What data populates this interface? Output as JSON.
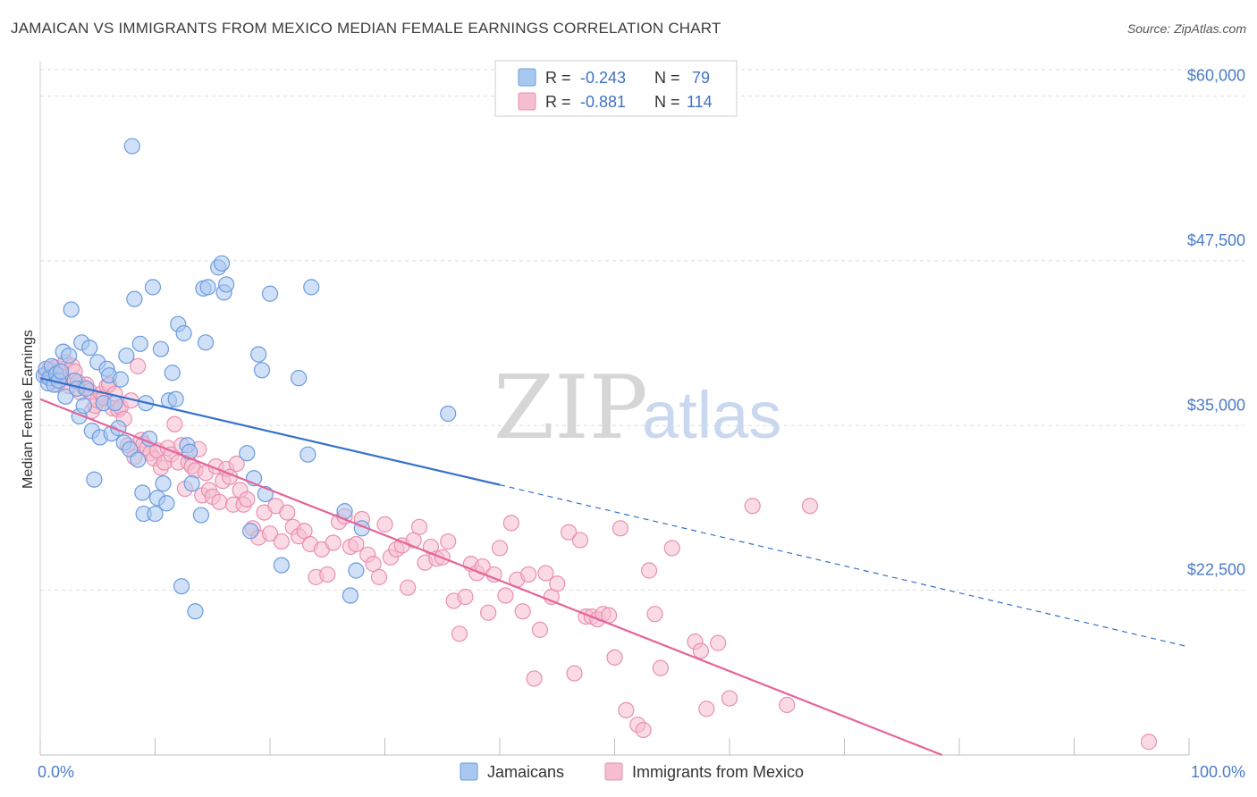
{
  "title": "JAMAICAN VS IMMIGRANTS FROM MEXICO MEDIAN FEMALE EARNINGS CORRELATION CHART",
  "source": "Source: ZipAtlas.com",
  "watermark": {
    "zip": "ZIP",
    "atlas": "atlas"
  },
  "colors": {
    "blue_fill": "#a9c8f0",
    "blue_stroke": "#6b9be0",
    "blue_line": "#3671c9",
    "pink_fill": "#f6bdd0",
    "pink_stroke": "#ea8fb0",
    "pink_line": "#e4649a",
    "grid": "#dcdcdc",
    "tick_text": "#4a7cc9"
  },
  "legend": {
    "rows": [
      {
        "r_label": "R =",
        "r_value": "-0.243",
        "n_label": "N =",
        "n_value": "79"
      },
      {
        "r_label": "R =",
        "r_value": "-0.881",
        "n_label": "N =",
        "n_value": "114"
      }
    ]
  },
  "chart_data": {
    "type": "scatter",
    "title": "JAMAICAN VS IMMIGRANTS FROM MEXICO MEDIAN FEMALE EARNINGS CORRELATION CHART",
    "xlabel": "",
    "ylabel": "Median Female Earnings",
    "xlim": [
      0,
      100
    ],
    "ylim": [
      10000,
      62000
    ],
    "y_ticks": [
      {
        "value": 22500,
        "label": "$22,500"
      },
      {
        "value": 35000,
        "label": "$35,000"
      },
      {
        "value": 47500,
        "label": "$47,500"
      },
      {
        "value": 60000,
        "label": "$60,000"
      }
    ],
    "x_tick_labels": [
      {
        "value": 0,
        "label": "0.0%"
      },
      {
        "value": 100,
        "label": "100.0%"
      }
    ],
    "x_minor_ticks": [
      0,
      10,
      20,
      30,
      40,
      50,
      60,
      70,
      80,
      90,
      100
    ],
    "series": [
      {
        "name": "Jamaicans",
        "color": "blue",
        "trend": {
          "x0": 0,
          "y0": 38600,
          "x1": 40,
          "y1": 30500,
          "dash_x1": 100,
          "dash_y1": 18200
        },
        "points": [
          [
            0.3,
            38800
          ],
          [
            0.5,
            39300
          ],
          [
            0.7,
            38200
          ],
          [
            0.8,
            38600
          ],
          [
            1.0,
            39500
          ],
          [
            1.2,
            38100
          ],
          [
            1.4,
            38900
          ],
          [
            1.6,
            38400
          ],
          [
            1.8,
            39100
          ],
          [
            2.0,
            40600
          ],
          [
            2.2,
            37200
          ],
          [
            2.5,
            40300
          ],
          [
            2.7,
            43800
          ],
          [
            3.0,
            38400
          ],
          [
            3.2,
            37800
          ],
          [
            3.4,
            35700
          ],
          [
            3.6,
            41300
          ],
          [
            3.8,
            36500
          ],
          [
            4.0,
            37800
          ],
          [
            4.3,
            40900
          ],
          [
            4.5,
            34600
          ],
          [
            4.7,
            30900
          ],
          [
            5.0,
            39800
          ],
          [
            5.2,
            34100
          ],
          [
            5.5,
            36700
          ],
          [
            5.8,
            39300
          ],
          [
            6.0,
            38800
          ],
          [
            6.2,
            34400
          ],
          [
            6.5,
            36700
          ],
          [
            6.8,
            34800
          ],
          [
            7.0,
            38500
          ],
          [
            7.3,
            33700
          ],
          [
            7.5,
            40300
          ],
          [
            7.8,
            33200
          ],
          [
            8.0,
            56200
          ],
          [
            8.2,
            44600
          ],
          [
            8.5,
            32400
          ],
          [
            8.7,
            41200
          ],
          [
            8.9,
            29900
          ],
          [
            9.0,
            28300
          ],
          [
            9.2,
            36700
          ],
          [
            9.5,
            34000
          ],
          [
            9.8,
            45500
          ],
          [
            10.0,
            28300
          ],
          [
            10.2,
            29500
          ],
          [
            10.5,
            40800
          ],
          [
            10.7,
            30600
          ],
          [
            11.0,
            29100
          ],
          [
            11.2,
            36900
          ],
          [
            11.5,
            39000
          ],
          [
            11.8,
            37000
          ],
          [
            12.0,
            42700
          ],
          [
            12.3,
            22800
          ],
          [
            12.5,
            42000
          ],
          [
            12.8,
            33500
          ],
          [
            13.0,
            33000
          ],
          [
            13.2,
            30600
          ],
          [
            13.5,
            20900
          ],
          [
            14.0,
            28200
          ],
          [
            14.2,
            45400
          ],
          [
            14.4,
            41300
          ],
          [
            14.6,
            45500
          ],
          [
            15.5,
            47000
          ],
          [
            15.8,
            47300
          ],
          [
            16.0,
            45100
          ],
          [
            16.2,
            45700
          ],
          [
            18.0,
            32900
          ],
          [
            18.3,
            27000
          ],
          [
            18.6,
            31000
          ],
          [
            19.0,
            40400
          ],
          [
            19.3,
            39200
          ],
          [
            19.6,
            29800
          ],
          [
            20.0,
            45000
          ],
          [
            21.0,
            24400
          ],
          [
            22.5,
            38600
          ],
          [
            23.3,
            32800
          ],
          [
            23.6,
            45500
          ],
          [
            26.5,
            28500
          ],
          [
            27.0,
            22100
          ],
          [
            27.5,
            24000
          ],
          [
            28.0,
            27200
          ],
          [
            35.5,
            35900
          ]
        ]
      },
      {
        "name": "Immigrants from Mexico",
        "color": "pink",
        "trend": {
          "x0": 0,
          "y0": 37000,
          "x1": 78.5,
          "y1": 10000
        },
        "points": [
          [
            0.5,
            38900
          ],
          [
            0.8,
            39300
          ],
          [
            1.0,
            38700
          ],
          [
            1.3,
            39400
          ],
          [
            1.5,
            38100
          ],
          [
            1.8,
            39300
          ],
          [
            2.0,
            38500
          ],
          [
            2.2,
            39800
          ],
          [
            2.5,
            38000
          ],
          [
            2.8,
            39500
          ],
          [
            3.0,
            39100
          ],
          [
            3.3,
            38300
          ],
          [
            3.5,
            37500
          ],
          [
            3.8,
            37900
          ],
          [
            4.0,
            38100
          ],
          [
            4.3,
            37600
          ],
          [
            4.5,
            36100
          ],
          [
            4.8,
            36500
          ],
          [
            5.0,
            36900
          ],
          [
            5.3,
            37400
          ],
          [
            5.5,
            37100
          ],
          [
            5.8,
            38000
          ],
          [
            6.0,
            38100
          ],
          [
            6.3,
            36300
          ],
          [
            6.5,
            37400
          ],
          [
            6.8,
            36200
          ],
          [
            7.0,
            36400
          ],
          [
            7.3,
            35500
          ],
          [
            7.6,
            33500
          ],
          [
            7.9,
            36900
          ],
          [
            8.2,
            32600
          ],
          [
            8.5,
            39500
          ],
          [
            8.8,
            33900
          ],
          [
            9.0,
            33600
          ],
          [
            9.3,
            33300
          ],
          [
            9.6,
            32900
          ],
          [
            9.9,
            32500
          ],
          [
            10.2,
            33100
          ],
          [
            10.5,
            31800
          ],
          [
            10.8,
            32200
          ],
          [
            11.1,
            33300
          ],
          [
            11.4,
            32800
          ],
          [
            11.7,
            35100
          ],
          [
            12.0,
            32200
          ],
          [
            12.3,
            33500
          ],
          [
            12.6,
            30200
          ],
          [
            12.9,
            32200
          ],
          [
            13.2,
            31900
          ],
          [
            13.5,
            31600
          ],
          [
            13.8,
            33200
          ],
          [
            14.1,
            29700
          ],
          [
            14.4,
            31400
          ],
          [
            14.7,
            30100
          ],
          [
            15.0,
            29600
          ],
          [
            15.3,
            31900
          ],
          [
            15.6,
            29200
          ],
          [
            15.9,
            30800
          ],
          [
            16.2,
            31700
          ],
          [
            16.5,
            31100
          ],
          [
            16.8,
            29000
          ],
          [
            17.1,
            32100
          ],
          [
            17.4,
            30100
          ],
          [
            17.7,
            29000
          ],
          [
            18.0,
            29400
          ],
          [
            18.5,
            27200
          ],
          [
            19.0,
            26500
          ],
          [
            19.5,
            28400
          ],
          [
            20.0,
            26800
          ],
          [
            20.5,
            28900
          ],
          [
            21.0,
            26200
          ],
          [
            21.5,
            28400
          ],
          [
            22.0,
            27300
          ],
          [
            22.5,
            26600
          ],
          [
            23.0,
            27000
          ],
          [
            23.5,
            26000
          ],
          [
            24.0,
            23500
          ],
          [
            24.5,
            25600
          ],
          [
            25.0,
            23700
          ],
          [
            25.5,
            26100
          ],
          [
            26.0,
            27700
          ],
          [
            26.5,
            28100
          ],
          [
            27.0,
            25800
          ],
          [
            27.5,
            26000
          ],
          [
            28.0,
            27900
          ],
          [
            28.5,
            25200
          ],
          [
            29.0,
            24500
          ],
          [
            29.5,
            23500
          ],
          [
            30.0,
            27500
          ],
          [
            30.5,
            25000
          ],
          [
            31.0,
            25600
          ],
          [
            31.5,
            25900
          ],
          [
            32.0,
            22700
          ],
          [
            32.5,
            26300
          ],
          [
            33.0,
            27300
          ],
          [
            33.5,
            24600
          ],
          [
            34.0,
            25800
          ],
          [
            34.5,
            24900
          ],
          [
            35.0,
            25000
          ],
          [
            35.5,
            26200
          ],
          [
            36.0,
            21700
          ],
          [
            36.5,
            19200
          ],
          [
            37.0,
            22000
          ],
          [
            37.5,
            24500
          ],
          [
            38.0,
            23800
          ],
          [
            38.5,
            24300
          ],
          [
            39.0,
            20800
          ],
          [
            39.5,
            23700
          ],
          [
            40.0,
            25700
          ],
          [
            40.5,
            22100
          ],
          [
            41.0,
            27600
          ],
          [
            41.5,
            23300
          ],
          [
            42.0,
            20900
          ],
          [
            42.5,
            23700
          ],
          [
            43.0,
            15800
          ],
          [
            43.5,
            19500
          ],
          [
            44.0,
            23800
          ],
          [
            44.5,
            22000
          ],
          [
            45.0,
            23000
          ],
          [
            46.0,
            26900
          ],
          [
            46.5,
            16200
          ],
          [
            47.0,
            26300
          ],
          [
            47.5,
            20500
          ],
          [
            48.0,
            20500
          ],
          [
            48.5,
            20300
          ],
          [
            49.0,
            20700
          ],
          [
            49.5,
            20600
          ],
          [
            50.0,
            17400
          ],
          [
            50.5,
            27200
          ],
          [
            51.0,
            13400
          ],
          [
            52.0,
            12300
          ],
          [
            52.5,
            11900
          ],
          [
            53.0,
            24000
          ],
          [
            53.5,
            20700
          ],
          [
            54.0,
            16600
          ],
          [
            55.0,
            25700
          ],
          [
            57.0,
            18600
          ],
          [
            57.5,
            17900
          ],
          [
            58.0,
            13500
          ],
          [
            59.0,
            18500
          ],
          [
            60.0,
            14300
          ],
          [
            62.0,
            28900
          ],
          [
            65.0,
            13800
          ],
          [
            67.0,
            28900
          ],
          [
            96.5,
            11000
          ]
        ]
      }
    ]
  },
  "bottom_legend": [
    {
      "label": "Jamaicans",
      "color": "blue"
    },
    {
      "label": "Immigrants from Mexico",
      "color": "pink"
    }
  ]
}
